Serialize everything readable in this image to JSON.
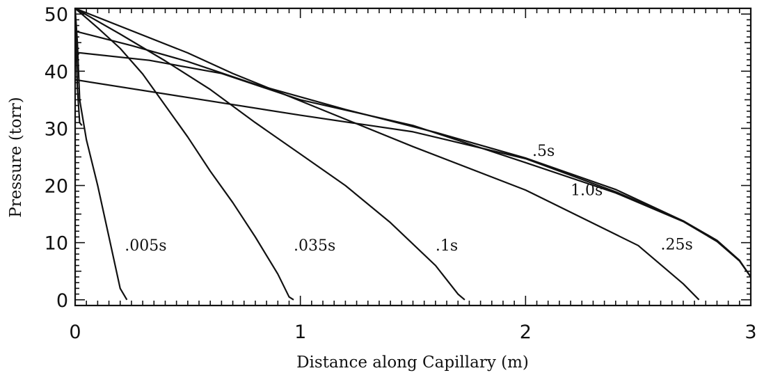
{
  "chart_data": {
    "type": "line",
    "title": "",
    "xlabel": "Distance along Capillary (m)",
    "ylabel": "Pressure (torr)",
    "xlim": [
      0,
      3
    ],
    "ylim": [
      -1,
      51
    ],
    "x_ticks": [
      {
        "value": 0,
        "label": "0"
      },
      {
        "value": 1,
        "label": "1"
      },
      {
        "value": 2,
        "label": "2"
      },
      {
        "value": 3,
        "label": "3"
      }
    ],
    "y_ticks": [
      {
        "value": 0,
        "label": "0"
      },
      {
        "value": 10,
        "label": "10"
      },
      {
        "value": 20,
        "label": "20"
      },
      {
        "value": 30,
        "label": "30"
      },
      {
        "value": 40,
        "label": "40"
      },
      {
        "value": 50,
        "label": "50"
      }
    ],
    "grid": false,
    "series": [
      {
        "name": ".005s",
        "points": [
          [
            0,
            51
          ],
          [
            0.01,
            45
          ],
          [
            0.02,
            35
          ],
          [
            0.05,
            28
          ],
          [
            0.1,
            20
          ],
          [
            0.15,
            11
          ],
          [
            0.2,
            2
          ],
          [
            0.23,
            0
          ]
        ]
      },
      {
        "name": ".035s",
        "points": [
          [
            0,
            51
          ],
          [
            0.1,
            47.6
          ],
          [
            0.2,
            44
          ],
          [
            0.3,
            39.5
          ],
          [
            0.4,
            34
          ],
          [
            0.5,
            28.5
          ],
          [
            0.6,
            22.5
          ],
          [
            0.7,
            17
          ],
          [
            0.8,
            11
          ],
          [
            0.9,
            4.5
          ],
          [
            0.95,
            0.5
          ],
          [
            0.97,
            0
          ]
        ]
      },
      {
        "name": ".1s",
        "points": [
          [
            0,
            51
          ],
          [
            0.2,
            46.5
          ],
          [
            0.4,
            41.8
          ],
          [
            0.6,
            36.8
          ],
          [
            0.8,
            31
          ],
          [
            1.0,
            25.5
          ],
          [
            1.2,
            20
          ],
          [
            1.4,
            13.5
          ],
          [
            1.6,
            6
          ],
          [
            1.7,
            1
          ],
          [
            1.73,
            0
          ]
        ]
      },
      {
        "name": ".25s",
        "points": [
          [
            0,
            51
          ],
          [
            0.5,
            43.2
          ],
          [
            0.7,
            39.6
          ],
          [
            1.0,
            34.8
          ],
          [
            1.5,
            26.8
          ],
          [
            2.0,
            19.2
          ],
          [
            2.5,
            9.5
          ],
          [
            2.7,
            2.8
          ],
          [
            2.77,
            0
          ]
        ]
      },
      {
        "name": ".5s",
        "points": [
          [
            0,
            47
          ],
          [
            0.25,
            44.5
          ],
          [
            0.5,
            41.7
          ],
          [
            0.8,
            37.7
          ],
          [
            1.2,
            33.3
          ],
          [
            1.6,
            29.3
          ],
          [
            2.0,
            24.8
          ],
          [
            2.4,
            19.3
          ],
          [
            2.7,
            13.8
          ],
          [
            2.85,
            10.4
          ],
          [
            2.95,
            6.9
          ],
          [
            3.0,
            4
          ]
        ]
      },
      {
        "name": "1.0s",
        "points": [
          [
            0,
            43.3
          ],
          [
            0.33,
            41.9
          ],
          [
            0.65,
            39.6
          ],
          [
            1.0,
            35
          ],
          [
            1.5,
            30.5
          ],
          [
            2.0,
            24
          ],
          [
            2.4,
            18.7
          ],
          [
            2.7,
            13.7
          ],
          [
            2.85,
            10.2
          ],
          [
            2.95,
            6.8
          ],
          [
            3.0,
            4
          ]
        ]
      },
      {
        "name": "",
        "points": [
          [
            0,
            38.5
          ],
          [
            0.5,
            35.4
          ],
          [
            1.0,
            32.3
          ],
          [
            1.5,
            29.4
          ],
          [
            2.0,
            24.7
          ],
          [
            2.4,
            18.9
          ],
          [
            2.7,
            13.8
          ],
          [
            2.85,
            10.3
          ],
          [
            2.95,
            6.8
          ],
          [
            3.0,
            4
          ]
        ]
      },
      {
        "name": "",
        "points": [
          [
            0,
            51
          ],
          [
            0.005,
            44
          ],
          [
            0.01,
            37
          ],
          [
            0.02,
            31
          ],
          [
            0.03,
            30.5
          ]
        ]
      }
    ],
    "annotations": [
      {
        "text": ".005s",
        "x": 0.22,
        "y": 8.6
      },
      {
        "text": ".035s",
        "x": 0.97,
        "y": 8.6
      },
      {
        "text": ".1s",
        "x": 1.6,
        "y": 8.6
      },
      {
        "text": ".25s",
        "x": 2.6,
        "y": 8.8
      },
      {
        "text": ".5s",
        "x": 2.03,
        "y": 25.2
      },
      {
        "text": "1.0s",
        "x": 2.2,
        "y": 18.3
      }
    ]
  }
}
